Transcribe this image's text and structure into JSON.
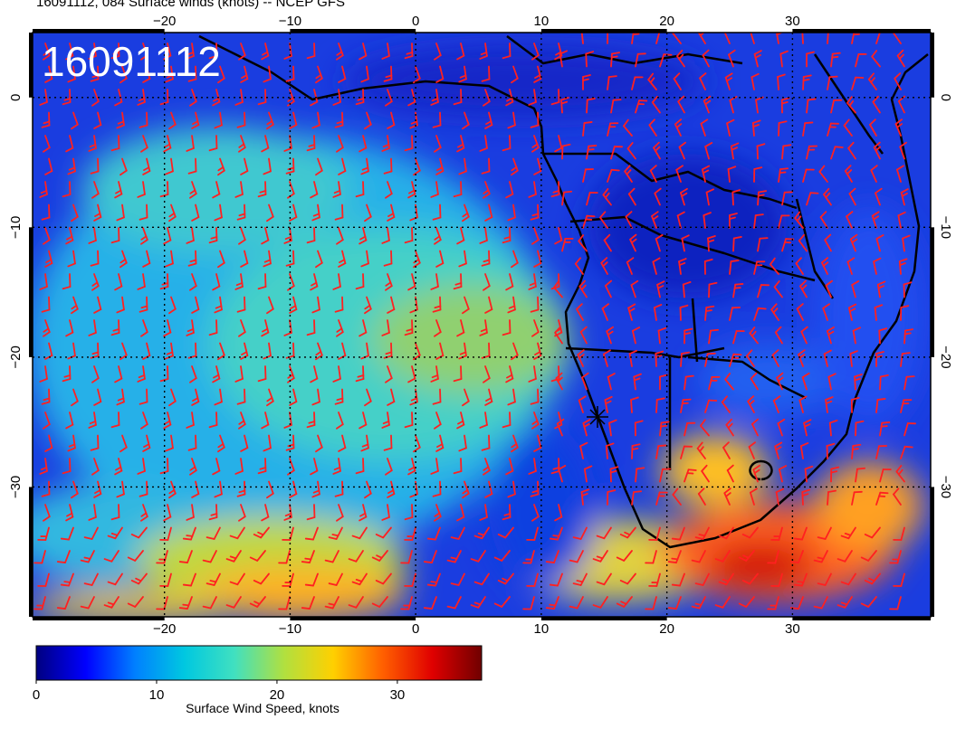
{
  "title": "16091112, 084 Surface winds (knots) -- NCEP GFS",
  "stamp": "16091112",
  "map": {
    "lon_range": [
      -30.5,
      41
    ],
    "lat_range": [
      -40,
      5
    ],
    "lon_ticks": [
      "−20",
      "−10",
      "0",
      "10",
      "20",
      "30"
    ],
    "lon_tick_values": [
      -20,
      -10,
      0,
      10,
      20,
      30
    ],
    "lat_ticks": [
      "0",
      "−10",
      "−20",
      "−30"
    ],
    "lat_tick_values": [
      0,
      -10,
      -20,
      -30
    ],
    "grid": "dotted",
    "land_outline_color": "#000000",
    "barb_color": "#ff2020",
    "marker": "star-marker"
  },
  "colorbar": {
    "label": "Surface Wind Speed, knots",
    "ticks": [
      "0",
      "10",
      "20",
      "30"
    ],
    "tick_values": [
      0,
      10,
      20,
      30
    ],
    "range": [
      0,
      37
    ],
    "colors": [
      "#000080",
      "#0000ff",
      "#0080ff",
      "#00c8e0",
      "#40e0c0",
      "#b0e040",
      "#ffd000",
      "#ff6000",
      "#e00000",
      "#700000"
    ]
  },
  "chart_data": {
    "type": "heatmap",
    "title": "16091112, 084 Surface winds (knots) -- NCEP GFS",
    "variable": "Surface Wind Speed, knots",
    "value_range": [
      0,
      37
    ],
    "x_ticks": [
      -20,
      -10,
      0,
      10,
      20,
      30
    ],
    "y_ticks": [
      0,
      -10,
      -20,
      -30
    ]
  }
}
